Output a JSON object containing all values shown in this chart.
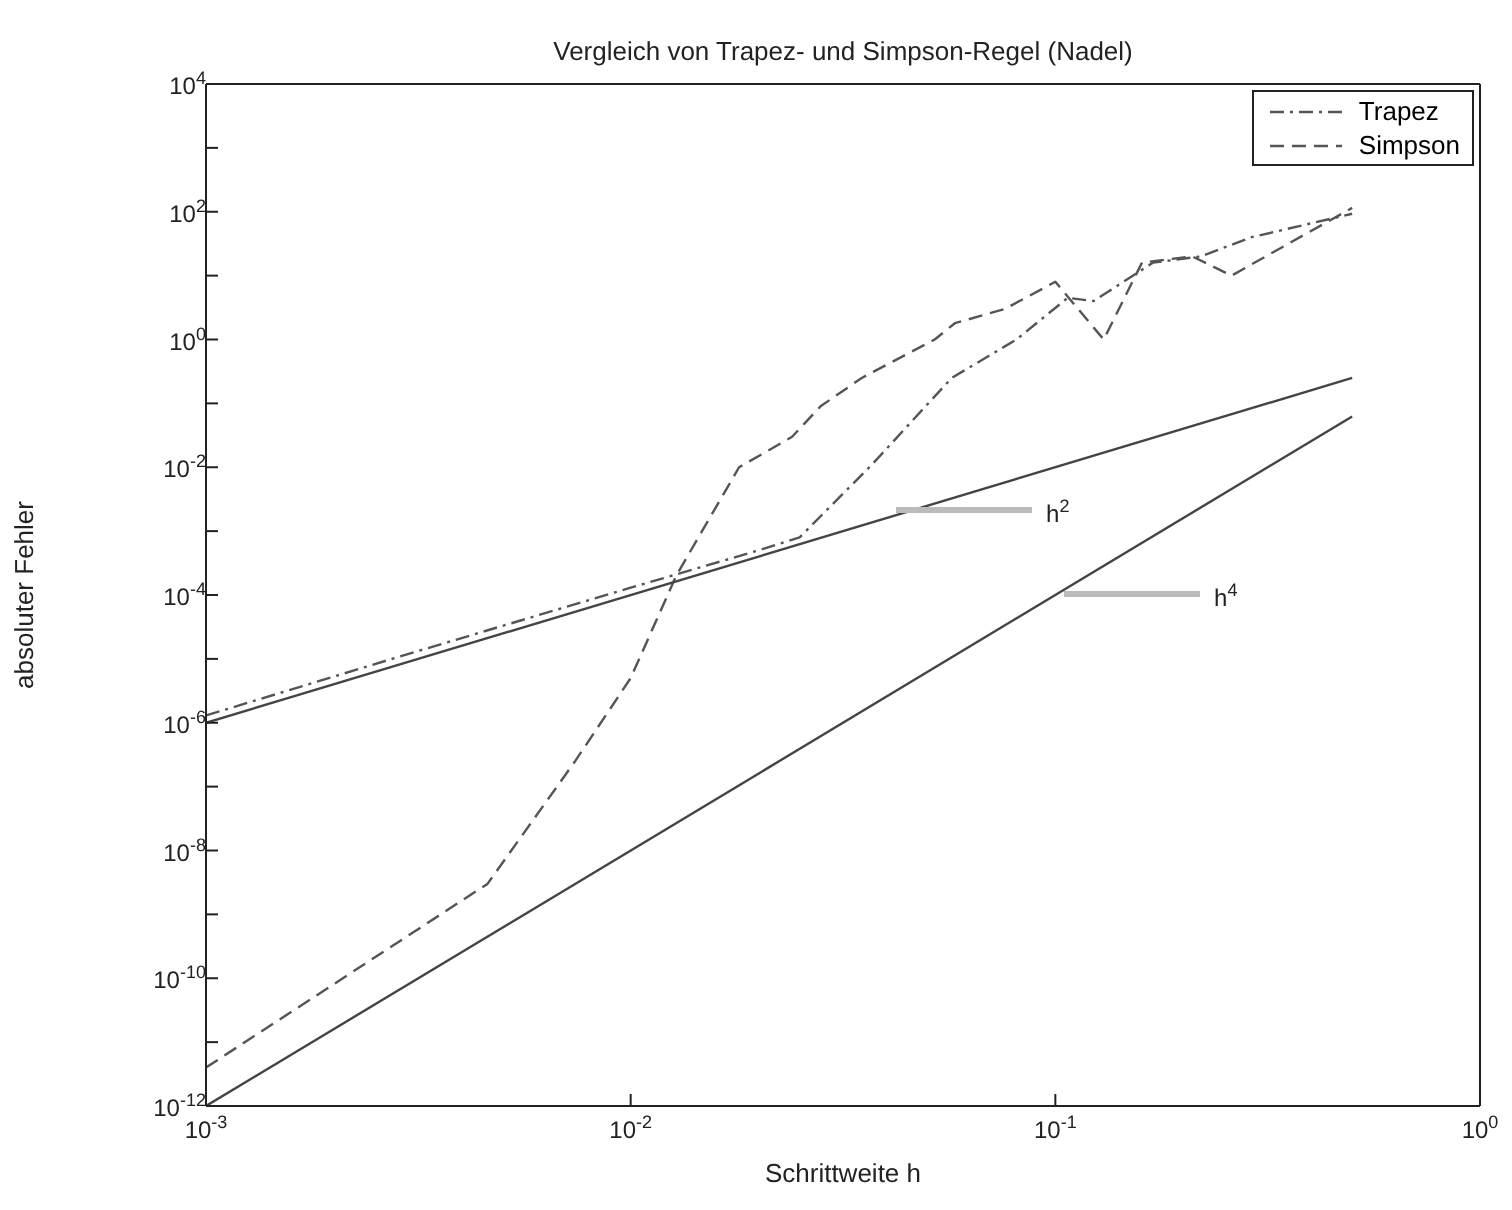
{
  "chart_data": {
    "type": "line",
    "title": "Vergleich von Trapez- und Simpson-Regel (Nadel)",
    "xlabel": "Schrittweite h",
    "ylabel": "absoluter Fehler",
    "log": "xy",
    "legend": "top right",
    "xlim": [
      0.001,
      1
    ],
    "ylim": [
      1e-12,
      10000
    ],
    "xticks": [
      {
        "value": 0.001,
        "label": "10$^{-3}$"
      },
      {
        "value": 0.01,
        "label": "10$^{-2}$"
      },
      {
        "value": 0.1,
        "label": "10$^{-1}$"
      },
      {
        "value": 1,
        "label": "10$^{0}$"
      }
    ],
    "yticks": [
      {
        "value": 1e-12,
        "label": "10$^{-12}$"
      },
      {
        "value": 1e-11,
        "label": null
      },
      {
        "value": 1e-10,
        "label": "10$^{-10}$"
      },
      {
        "value": 1e-09,
        "label": null
      },
      {
        "value": 1e-08,
        "label": "10$^{-8}$"
      },
      {
        "value": 1e-07,
        "label": null
      },
      {
        "value": 1e-06,
        "label": "10$^{-6}$"
      },
      {
        "value": 1e-05,
        "label": null
      },
      {
        "value": 0.0001,
        "label": "10$^{-4}$"
      },
      {
        "value": 0.001,
        "label": null
      },
      {
        "value": 0.01,
        "label": "10$^{-2}$"
      },
      {
        "value": 0.1,
        "label": null
      },
      {
        "value": 1,
        "label": "10$^{0}$"
      },
      {
        "value": 10,
        "label": null
      },
      {
        "value": 100,
        "label": "10$^{2}$"
      },
      {
        "value": 1000,
        "label": null
      },
      {
        "value": 10000,
        "label": "10$^{4}$"
      }
    ],
    "series": [
      {
        "name": "Trapez",
        "color": "#555555",
        "line_style": "dashdot",
        "x": [
          0.001,
          0.003,
          0.01,
          0.02,
          0.025,
          0.037,
          0.057,
          0.081,
          0.107,
          0.123,
          0.17,
          0.22,
          0.29,
          0.5
        ],
        "values": [
          1.3e-06,
          1.2e-05,
          0.00013,
          0.0005,
          0.0008,
          0.011,
          0.25,
          1,
          4.5,
          4,
          16,
          20,
          40,
          93
        ]
      },
      {
        "name": "Simpson",
        "color": "#555555",
        "line_style": "dashed",
        "x": [
          0.001,
          0.0046,
          0.0074,
          0.01,
          0.0128,
          0.018,
          0.024,
          0.028,
          0.035,
          0.052,
          0.058,
          0.076,
          0.1,
          0.13,
          0.16,
          0.21,
          0.26,
          0.5
        ],
        "values": [
          4e-12,
          3e-09,
          2.5e-07,
          5e-06,
          0.0002,
          0.01,
          0.03,
          0.09,
          0.25,
          1,
          1.8,
          3,
          8,
          1,
          16,
          20,
          10,
          115
        ]
      },
      {
        "color": "#444444",
        "line_style": "solid",
        "x": [
          0.001,
          0.5
        ],
        "values": [
          1e-06,
          0.25
        ]
      },
      {
        "color": "#444444",
        "line_style": "solid",
        "x": [
          0.001,
          0.5
        ],
        "values": [
          1e-12,
          0.0625
        ]
      }
    ],
    "annotations": [
      "h$^{2}$",
      "h$^{4}$"
    ]
  }
}
